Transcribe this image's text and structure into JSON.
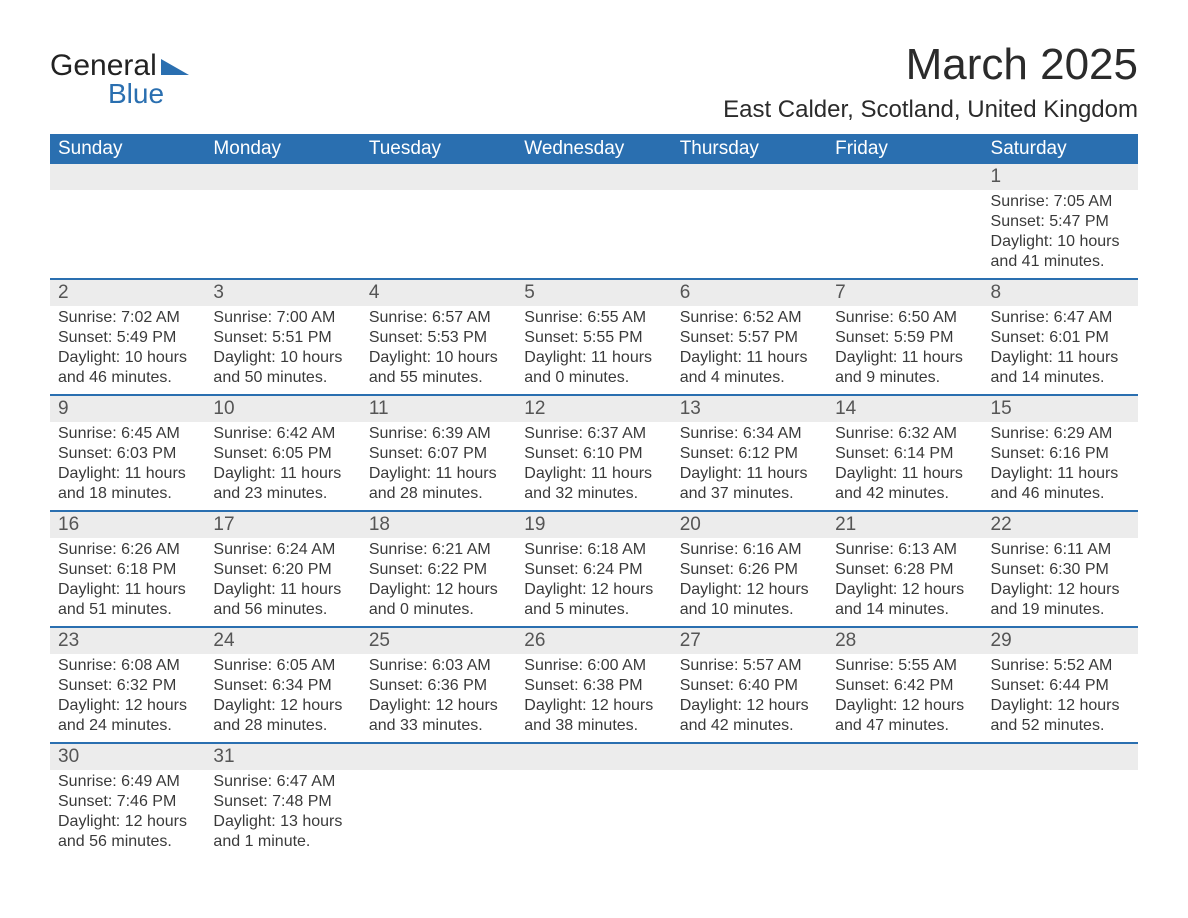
{
  "logo": {
    "word1": "General",
    "word2": "Blue",
    "tri_color": "#2a6fb0"
  },
  "title": "March 2025",
  "subtitle": "East Calder, Scotland, United Kingdom",
  "colors": {
    "header_bg": "#2a6fb0",
    "header_fg": "#ffffff",
    "daynum_bg": "#ececec",
    "row_border": "#2a6fb0",
    "text": "#3a3a3a",
    "page_bg": "#ffffff"
  },
  "font": {
    "family": "Arial",
    "title_size": 44,
    "subtitle_size": 24,
    "header_size": 19,
    "body_size": 16
  },
  "weekdays": [
    "Sunday",
    "Monday",
    "Tuesday",
    "Wednesday",
    "Thursday",
    "Friday",
    "Saturday"
  ],
  "weeks": [
    [
      {
        "n": "",
        "sr": "",
        "ss": "",
        "dl": ""
      },
      {
        "n": "",
        "sr": "",
        "ss": "",
        "dl": ""
      },
      {
        "n": "",
        "sr": "",
        "ss": "",
        "dl": ""
      },
      {
        "n": "",
        "sr": "",
        "ss": "",
        "dl": ""
      },
      {
        "n": "",
        "sr": "",
        "ss": "",
        "dl": ""
      },
      {
        "n": "",
        "sr": "",
        "ss": "",
        "dl": ""
      },
      {
        "n": "1",
        "sr": "Sunrise: 7:05 AM",
        "ss": "Sunset: 5:47 PM",
        "dl": "Daylight: 10 hours and 41 minutes."
      }
    ],
    [
      {
        "n": "2",
        "sr": "Sunrise: 7:02 AM",
        "ss": "Sunset: 5:49 PM",
        "dl": "Daylight: 10 hours and 46 minutes."
      },
      {
        "n": "3",
        "sr": "Sunrise: 7:00 AM",
        "ss": "Sunset: 5:51 PM",
        "dl": "Daylight: 10 hours and 50 minutes."
      },
      {
        "n": "4",
        "sr": "Sunrise: 6:57 AM",
        "ss": "Sunset: 5:53 PM",
        "dl": "Daylight: 10 hours and 55 minutes."
      },
      {
        "n": "5",
        "sr": "Sunrise: 6:55 AM",
        "ss": "Sunset: 5:55 PM",
        "dl": "Daylight: 11 hours and 0 minutes."
      },
      {
        "n": "6",
        "sr": "Sunrise: 6:52 AM",
        "ss": "Sunset: 5:57 PM",
        "dl": "Daylight: 11 hours and 4 minutes."
      },
      {
        "n": "7",
        "sr": "Sunrise: 6:50 AM",
        "ss": "Sunset: 5:59 PM",
        "dl": "Daylight: 11 hours and 9 minutes."
      },
      {
        "n": "8",
        "sr": "Sunrise: 6:47 AM",
        "ss": "Sunset: 6:01 PM",
        "dl": "Daylight: 11 hours and 14 minutes."
      }
    ],
    [
      {
        "n": "9",
        "sr": "Sunrise: 6:45 AM",
        "ss": "Sunset: 6:03 PM",
        "dl": "Daylight: 11 hours and 18 minutes."
      },
      {
        "n": "10",
        "sr": "Sunrise: 6:42 AM",
        "ss": "Sunset: 6:05 PM",
        "dl": "Daylight: 11 hours and 23 minutes."
      },
      {
        "n": "11",
        "sr": "Sunrise: 6:39 AM",
        "ss": "Sunset: 6:07 PM",
        "dl": "Daylight: 11 hours and 28 minutes."
      },
      {
        "n": "12",
        "sr": "Sunrise: 6:37 AM",
        "ss": "Sunset: 6:10 PM",
        "dl": "Daylight: 11 hours and 32 minutes."
      },
      {
        "n": "13",
        "sr": "Sunrise: 6:34 AM",
        "ss": "Sunset: 6:12 PM",
        "dl": "Daylight: 11 hours and 37 minutes."
      },
      {
        "n": "14",
        "sr": "Sunrise: 6:32 AM",
        "ss": "Sunset: 6:14 PM",
        "dl": "Daylight: 11 hours and 42 minutes."
      },
      {
        "n": "15",
        "sr": "Sunrise: 6:29 AM",
        "ss": "Sunset: 6:16 PM",
        "dl": "Daylight: 11 hours and 46 minutes."
      }
    ],
    [
      {
        "n": "16",
        "sr": "Sunrise: 6:26 AM",
        "ss": "Sunset: 6:18 PM",
        "dl": "Daylight: 11 hours and 51 minutes."
      },
      {
        "n": "17",
        "sr": "Sunrise: 6:24 AM",
        "ss": "Sunset: 6:20 PM",
        "dl": "Daylight: 11 hours and 56 minutes."
      },
      {
        "n": "18",
        "sr": "Sunrise: 6:21 AM",
        "ss": "Sunset: 6:22 PM",
        "dl": "Daylight: 12 hours and 0 minutes."
      },
      {
        "n": "19",
        "sr": "Sunrise: 6:18 AM",
        "ss": "Sunset: 6:24 PM",
        "dl": "Daylight: 12 hours and 5 minutes."
      },
      {
        "n": "20",
        "sr": "Sunrise: 6:16 AM",
        "ss": "Sunset: 6:26 PM",
        "dl": "Daylight: 12 hours and 10 minutes."
      },
      {
        "n": "21",
        "sr": "Sunrise: 6:13 AM",
        "ss": "Sunset: 6:28 PM",
        "dl": "Daylight: 12 hours and 14 minutes."
      },
      {
        "n": "22",
        "sr": "Sunrise: 6:11 AM",
        "ss": "Sunset: 6:30 PM",
        "dl": "Daylight: 12 hours and 19 minutes."
      }
    ],
    [
      {
        "n": "23",
        "sr": "Sunrise: 6:08 AM",
        "ss": "Sunset: 6:32 PM",
        "dl": "Daylight: 12 hours and 24 minutes."
      },
      {
        "n": "24",
        "sr": "Sunrise: 6:05 AM",
        "ss": "Sunset: 6:34 PM",
        "dl": "Daylight: 12 hours and 28 minutes."
      },
      {
        "n": "25",
        "sr": "Sunrise: 6:03 AM",
        "ss": "Sunset: 6:36 PM",
        "dl": "Daylight: 12 hours and 33 minutes."
      },
      {
        "n": "26",
        "sr": "Sunrise: 6:00 AM",
        "ss": "Sunset: 6:38 PM",
        "dl": "Daylight: 12 hours and 38 minutes."
      },
      {
        "n": "27",
        "sr": "Sunrise: 5:57 AM",
        "ss": "Sunset: 6:40 PM",
        "dl": "Daylight: 12 hours and 42 minutes."
      },
      {
        "n": "28",
        "sr": "Sunrise: 5:55 AM",
        "ss": "Sunset: 6:42 PM",
        "dl": "Daylight: 12 hours and 47 minutes."
      },
      {
        "n": "29",
        "sr": "Sunrise: 5:52 AM",
        "ss": "Sunset: 6:44 PM",
        "dl": "Daylight: 12 hours and 52 minutes."
      }
    ],
    [
      {
        "n": "30",
        "sr": "Sunrise: 6:49 AM",
        "ss": "Sunset: 7:46 PM",
        "dl": "Daylight: 12 hours and 56 minutes."
      },
      {
        "n": "31",
        "sr": "Sunrise: 6:47 AM",
        "ss": "Sunset: 7:48 PM",
        "dl": "Daylight: 13 hours and 1 minute."
      },
      {
        "n": "",
        "sr": "",
        "ss": "",
        "dl": ""
      },
      {
        "n": "",
        "sr": "",
        "ss": "",
        "dl": ""
      },
      {
        "n": "",
        "sr": "",
        "ss": "",
        "dl": ""
      },
      {
        "n": "",
        "sr": "",
        "ss": "",
        "dl": ""
      },
      {
        "n": "",
        "sr": "",
        "ss": "",
        "dl": ""
      }
    ]
  ]
}
